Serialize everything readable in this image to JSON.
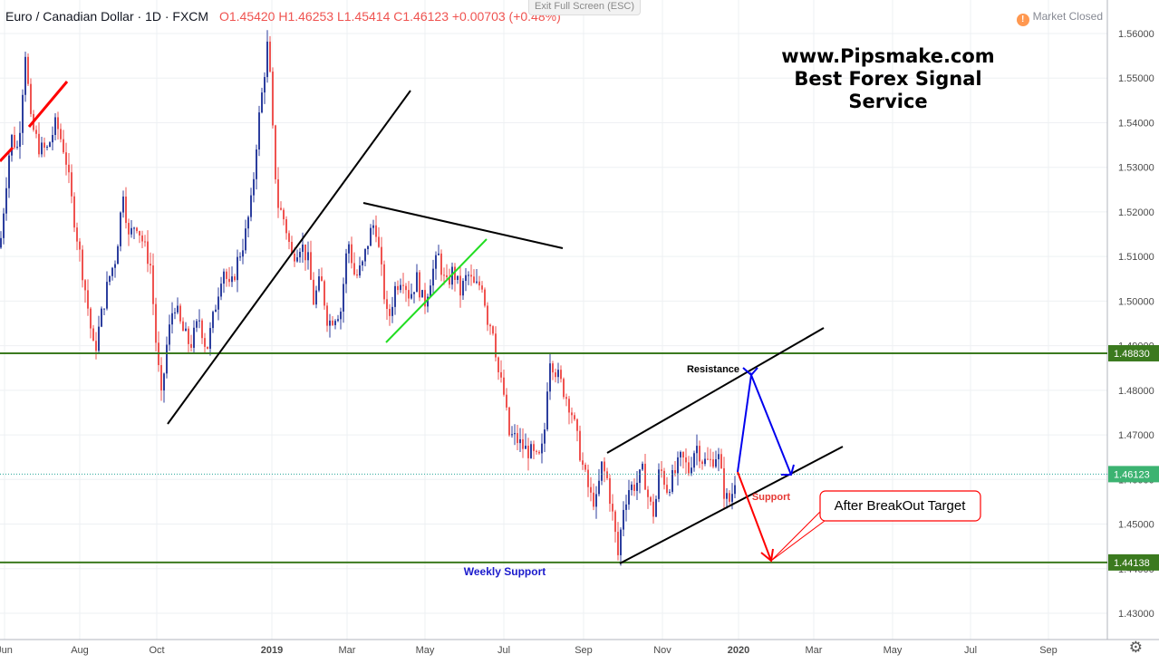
{
  "header": {
    "symbol": "Euro / Canadian Dollar · 1D · FXCM",
    "open": "O1.45420",
    "high": "H1.46253",
    "low": "L1.45414",
    "close": "C1.46123",
    "change": "+0.00703 (+0.48%)"
  },
  "exit_fullscreen": "Exit Full Screen (ESC)",
  "market_status": "Market Closed",
  "market_status_icon": "!",
  "brand": {
    "line1": "www.Pipsmake.com",
    "line2": "Best Forex Signal Service"
  },
  "settings_icon": "gear-icon",
  "colors": {
    "up": "#2c3e9e",
    "down": "#ef5350",
    "level_line": "#3b7a1f",
    "level_label_bg": "#3b7a1f",
    "price_label_bg": "#3cb371",
    "red_arrow": "#ff0000",
    "blue_arrow": "#0000ee",
    "green_line": "#22dd22"
  },
  "chart_data": {
    "type": "candlestick",
    "title": "Euro / Canadian Dollar · 1D · FXCM",
    "x_ticks": [
      "Jun",
      "Aug",
      "Oct",
      "2019",
      "Mar",
      "May",
      "Jul",
      "Sep",
      "Nov",
      "2020",
      "Mar",
      "May",
      "Jul",
      "Sep"
    ],
    "y_ticks": [
      "1.56000",
      "1.55000",
      "1.54000",
      "1.53000",
      "1.52000",
      "1.51000",
      "1.50000",
      "1.49000",
      "1.48000",
      "1.47000",
      "1.46000",
      "1.45000",
      "1.44000",
      "1.43000"
    ],
    "ylim": [
      1.427,
      1.563
    ],
    "series_path": [
      [
        0,
        1.512
      ],
      [
        6,
        1.525
      ],
      [
        12,
        1.537
      ],
      [
        20,
        1.534
      ],
      [
        28,
        1.556
      ],
      [
        34,
        1.54
      ],
      [
        44,
        1.534
      ],
      [
        52,
        1.534
      ],
      [
        62,
        1.54
      ],
      [
        72,
        1.533
      ],
      [
        80,
        1.521
      ],
      [
        90,
        1.508
      ],
      [
        96,
        1.5
      ],
      [
        104,
        1.488
      ],
      [
        112,
        1.497
      ],
      [
        120,
        1.505
      ],
      [
        128,
        1.51
      ],
      [
        136,
        1.525
      ],
      [
        142,
        1.514
      ],
      [
        150,
        1.518
      ],
      [
        158,
        1.513
      ],
      [
        166,
        1.508
      ],
      [
        172,
        1.491
      ],
      [
        178,
        1.478
      ],
      [
        184,
        1.49
      ],
      [
        192,
        1.5
      ],
      [
        200,
        1.494
      ],
      [
        210,
        1.49
      ],
      [
        220,
        1.496
      ],
      [
        228,
        1.489
      ],
      [
        236,
        1.497
      ],
      [
        246,
        1.508
      ],
      [
        254,
        1.502
      ],
      [
        262,
        1.509
      ],
      [
        270,
        1.514
      ],
      [
        278,
        1.523
      ],
      [
        284,
        1.538
      ],
      [
        290,
        1.548
      ],
      [
        296,
        1.559
      ],
      [
        300,
        1.541
      ],
      [
        306,
        1.522
      ],
      [
        314,
        1.518
      ],
      [
        322,
        1.51
      ],
      [
        332,
        1.513
      ],
      [
        340,
        1.509
      ],
      [
        346,
        1.5
      ],
      [
        354,
        1.505
      ],
      [
        362,
        1.495
      ],
      [
        370,
        1.497
      ],
      [
        376,
        1.498
      ],
      [
        384,
        1.514
      ],
      [
        392,
        1.505
      ],
      [
        400,
        1.508
      ],
      [
        408,
        1.515
      ],
      [
        414,
        1.518
      ],
      [
        420,
        1.508
      ],
      [
        428,
        1.495
      ],
      [
        436,
        1.503
      ],
      [
        444,
        1.506
      ],
      [
        452,
        1.501
      ],
      [
        460,
        1.505
      ],
      [
        468,
        1.499
      ],
      [
        476,
        1.506
      ],
      [
        484,
        1.51
      ],
      [
        492,
        1.503
      ],
      [
        500,
        1.507
      ],
      [
        508,
        1.502
      ],
      [
        516,
        1.506
      ],
      [
        524,
        1.503
      ],
      [
        532,
        1.504
      ],
      [
        538,
        1.496
      ],
      [
        544,
        1.494
      ],
      [
        550,
        1.484
      ],
      [
        556,
        1.479
      ],
      [
        562,
        1.47
      ],
      [
        570,
        1.469
      ],
      [
        578,
        1.467
      ],
      [
        586,
        1.466
      ],
      [
        594,
        1.464
      ],
      [
        600,
        1.468
      ],
      [
        606,
        1.488
      ],
      [
        614,
        1.484
      ],
      [
        622,
        1.48
      ],
      [
        630,
        1.476
      ],
      [
        636,
        1.47
      ],
      [
        644,
        1.462
      ],
      [
        652,
        1.456
      ],
      [
        658,
        1.455
      ],
      [
        664,
        1.463
      ],
      [
        670,
        1.46
      ],
      [
        676,
        1.452
      ],
      [
        682,
        1.443
      ],
      [
        688,
        1.454
      ],
      [
        694,
        1.458
      ],
      [
        702,
        1.459
      ],
      [
        710,
        1.462
      ],
      [
        716,
        1.455
      ],
      [
        722,
        1.452
      ],
      [
        728,
        1.463
      ],
      [
        736,
        1.458
      ],
      [
        744,
        1.461
      ],
      [
        752,
        1.465
      ],
      [
        760,
        1.462
      ],
      [
        768,
        1.468
      ],
      [
        776,
        1.464
      ],
      [
        784,
        1.464
      ],
      [
        792,
        1.466
      ],
      [
        800,
        1.456
      ],
      [
        806,
        1.455
      ],
      [
        812,
        1.4612
      ]
    ],
    "levels": [
      {
        "value": 1.4883,
        "label": "1.48830"
      },
      {
        "value": 1.4612,
        "label": "1.46123"
      },
      {
        "value": 1.4414,
        "label": "1.44138"
      }
    ],
    "annotations": {
      "resistance": "Resistance",
      "support": "Support",
      "weekly_support": "Weekly Support",
      "callout": "After BreakOut Target"
    }
  }
}
